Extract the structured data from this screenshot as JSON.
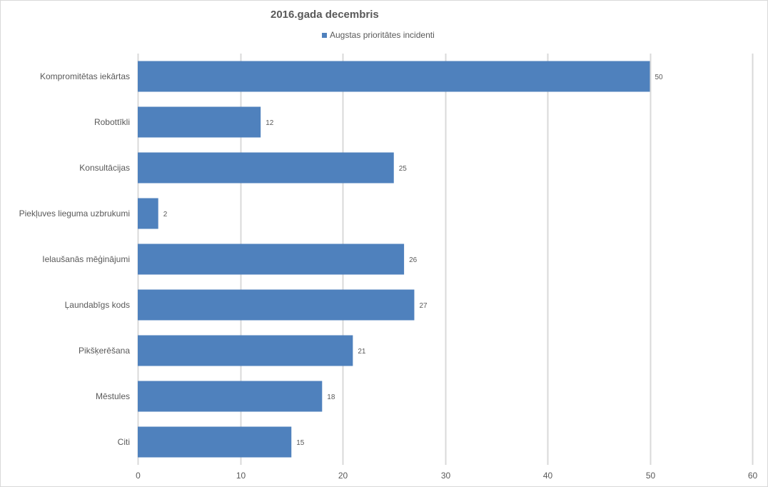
{
  "chart_data": {
    "type": "bar",
    "orientation": "horizontal",
    "title": "2016.gada decembris",
    "categories": [
      "Kompromitētas iekārtas",
      "Robottīkli",
      "Konsultācijas",
      "Piekļuves lieguma uzbrukumi",
      "Ielaušanās mēģinājumi",
      "Ļaundabīgs kods",
      "Pikšķerēšana",
      "Mēstules",
      "Citi"
    ],
    "series": [
      {
        "name": "Augstas prioritātes incidenti",
        "color": "#4f81bd",
        "values": [
          50,
          12,
          25,
          2,
          26,
          27,
          21,
          18,
          15
        ]
      }
    ],
    "xlim": [
      0,
      60
    ],
    "xticks": [
      0,
      10,
      20,
      30,
      40,
      50,
      60
    ],
    "grid": true,
    "legend_position": "top",
    "data_labels": true,
    "colors": {
      "bar": "#4f81bd",
      "grid": "#d9d9d9",
      "text": "#595959"
    }
  }
}
